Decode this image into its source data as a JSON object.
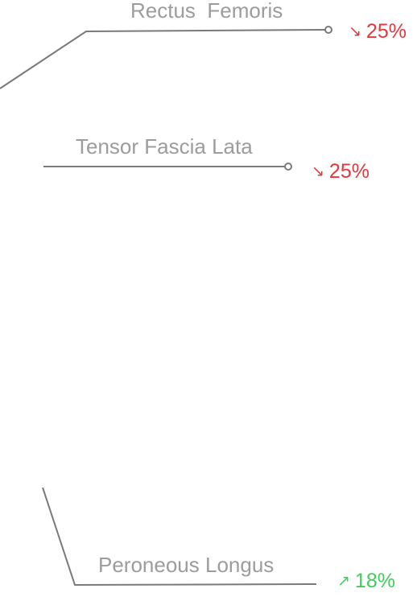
{
  "labels": [
    {
      "name": "Rectus  Femoris",
      "change": {
        "direction": "down",
        "arrow": "↘",
        "value": "25%",
        "color": "#e0393e"
      }
    },
    {
      "name": "Tensor Fascia Lata",
      "change": {
        "direction": "down",
        "arrow": "↘",
        "value": "25%",
        "color": "#e0393e"
      }
    },
    {
      "name": "Peroneous Longus",
      "change": {
        "direction": "up",
        "arrow": "↗",
        "value": "18%",
        "color": "#3ecf5a"
      }
    }
  ],
  "colors": {
    "label_text": "#9c9c9c",
    "leader_line": "#7a7a7a",
    "decrease": "#e0393e",
    "increase": "#3ecf5a"
  }
}
